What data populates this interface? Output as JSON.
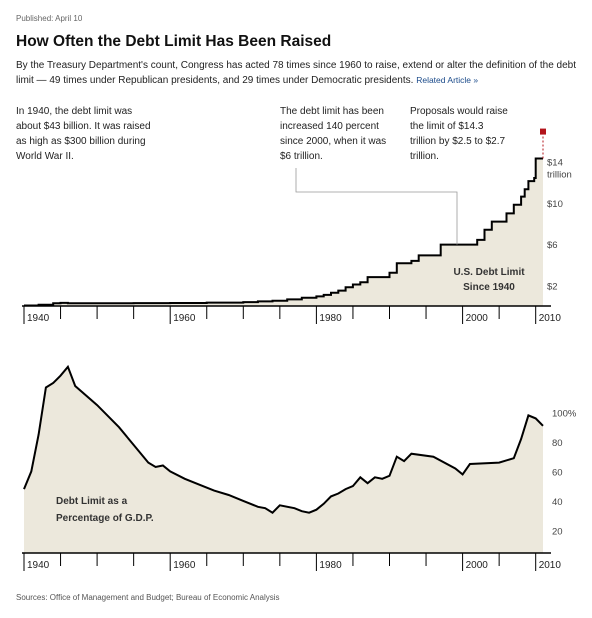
{
  "published": "Published: April 10",
  "headline": "How Often the Debt Limit Has Been Raised",
  "dek": "By the Treasury Department's count, Congress has acted 78 times since 1960 to raise, extend or alter the definition of the debt limit — 49 times under Republican presidents, and 29 times under Democratic presidents.",
  "related_link": "Related Article »",
  "annotations": {
    "note1": "In 1940, the debt limit was about $43 billion. It was raised as high as $300 billion during World War II.",
    "note2": "The debt limit has been increased 140 percent since 2000, when it was $6 trillion.",
    "note3": "Proposals would raise the limit of $14.3 trillion by $2.5 to $2.7 trillion."
  },
  "sources": "Sources: Office of Management and Budget; Bureau of Economic Analysis",
  "colors": {
    "fill": "#ece8dc",
    "line": "#000000",
    "proposal_marker": "#b3141b",
    "grid": "#c8c8c8"
  },
  "chart_data": [
    {
      "type": "area",
      "title": "U.S. Debt Limit Since 1940",
      "unit": "trillion",
      "xlim": [
        1940,
        2011
      ],
      "ylim": [
        0,
        15.6
      ],
      "x_ticks": [
        "1940",
        "1960",
        "1980",
        "2000",
        "2010"
      ],
      "y_tick_labels": [
        "$2",
        "$6",
        "$10",
        "$14",
        "trillion"
      ],
      "grid": false,
      "step": true,
      "points": [
        [
          1940,
          0.045
        ],
        [
          1942,
          0.13
        ],
        [
          1944,
          0.26
        ],
        [
          1945,
          0.3
        ],
        [
          1946,
          0.275
        ],
        [
          1955,
          0.28
        ],
        [
          1960,
          0.295
        ],
        [
          1965,
          0.33
        ],
        [
          1970,
          0.38
        ],
        [
          1972,
          0.45
        ],
        [
          1974,
          0.5
        ],
        [
          1976,
          0.64
        ],
        [
          1978,
          0.8
        ],
        [
          1980,
          0.93
        ],
        [
          1981,
          1.08
        ],
        [
          1982,
          1.29
        ],
        [
          1983,
          1.49
        ],
        [
          1984,
          1.82
        ],
        [
          1985,
          2.08
        ],
        [
          1986,
          2.3
        ],
        [
          1987,
          2.8
        ],
        [
          1990,
          3.23
        ],
        [
          1991,
          4.15
        ],
        [
          1993,
          4.37
        ],
        [
          1994,
          4.9
        ],
        [
          1997,
          5.95
        ],
        [
          2002,
          6.4
        ],
        [
          2003,
          7.38
        ],
        [
          2004,
          8.18
        ],
        [
          2006,
          8.97
        ],
        [
          2007,
          9.82
        ],
        [
          2008,
          10.6
        ],
        [
          2008.5,
          11.32
        ],
        [
          2009,
          12.1
        ],
        [
          2009.8,
          12.4
        ],
        [
          2010,
          14.29
        ],
        [
          2011,
          14.29
        ]
      ],
      "proposal": {
        "x": 2011,
        "from": 14.29,
        "to": 16.9
      }
    },
    {
      "type": "area",
      "title": "Debt Limit as a Percentage of G.D.P.",
      "unit": "%",
      "xlim": [
        1940,
        2011
      ],
      "ylim": [
        8,
        137
      ],
      "x_ticks": [
        "1940",
        "1960",
        "1980",
        "2000",
        "2010"
      ],
      "y_tick_labels": [
        "20",
        "40",
        "60",
        "80",
        "100%"
      ],
      "grid": false,
      "points": [
        [
          1940,
          48
        ],
        [
          1941,
          60
        ],
        [
          1942,
          85
        ],
        [
          1943,
          117
        ],
        [
          1944,
          120
        ],
        [
          1945,
          125
        ],
        [
          1946,
          131
        ],
        [
          1947,
          118
        ],
        [
          1950,
          105
        ],
        [
          1953,
          90
        ],
        [
          1955,
          78
        ],
        [
          1957,
          66
        ],
        [
          1958,
          63
        ],
        [
          1959,
          64
        ],
        [
          1960,
          60
        ],
        [
          1962,
          55
        ],
        [
          1964,
          51
        ],
        [
          1966,
          47
        ],
        [
          1968,
          44
        ],
        [
          1970,
          40
        ],
        [
          1972,
          36
        ],
        [
          1973,
          35
        ],
        [
          1974,
          32
        ],
        [
          1975,
          37
        ],
        [
          1977,
          35
        ],
        [
          1978,
          33
        ],
        [
          1979,
          32
        ],
        [
          1980,
          34
        ],
        [
          1981,
          38
        ],
        [
          1982,
          43
        ],
        [
          1983,
          45
        ],
        [
          1984,
          48
        ],
        [
          1985,
          50
        ],
        [
          1986,
          56
        ],
        [
          1987,
          52
        ],
        [
          1988,
          56
        ],
        [
          1989,
          55
        ],
        [
          1990,
          57
        ],
        [
          1991,
          70
        ],
        [
          1992,
          67
        ],
        [
          1993,
          72
        ],
        [
          1996,
          70
        ],
        [
          1999,
          62
        ],
        [
          2000,
          58
        ],
        [
          2001,
          65
        ],
        [
          2005,
          66
        ],
        [
          2007,
          69
        ],
        [
          2008,
          82
        ],
        [
          2009,
          98
        ],
        [
          2010,
          96
        ],
        [
          2011,
          91
        ]
      ]
    }
  ],
  "chart_labels": {
    "top_series": "U.S. Debt Limit Since 1940",
    "bottom_series": "Debt Limit as a Percentage of G.D.P."
  }
}
